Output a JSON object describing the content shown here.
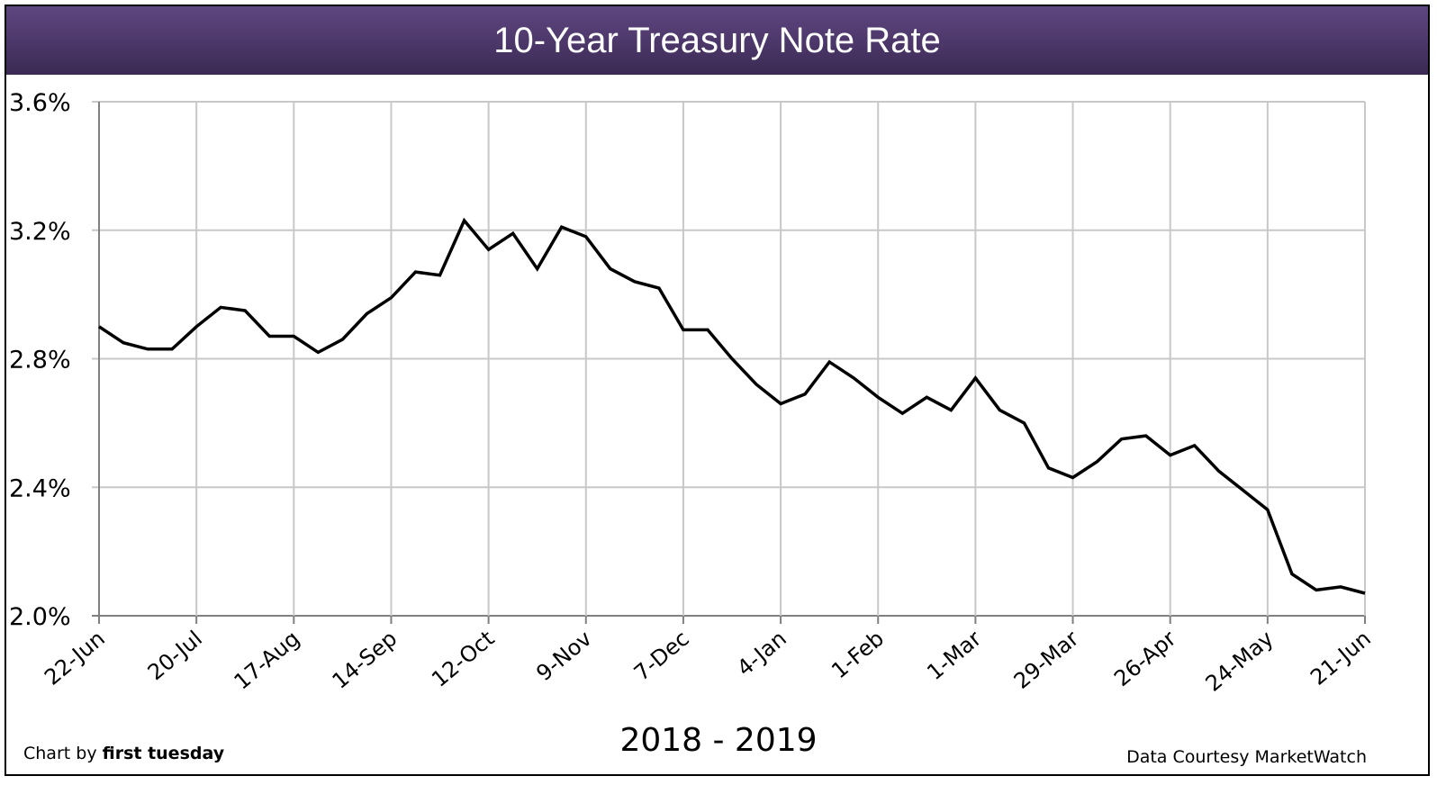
{
  "header": {
    "title": "10-Year Treasury Note Rate"
  },
  "footer": {
    "period": "2018 - 2019",
    "credit_prefix": "Chart by ",
    "credit_brand": "first tuesday",
    "source": "Data Courtesy MarketWatch"
  },
  "colors": {
    "title_bar": "#4c3769",
    "line": "#000000",
    "grid": "#c8c8c8",
    "axis": "#808080"
  },
  "chart_data": {
    "type": "line",
    "title": "10-Year Treasury Note Rate",
    "xlabel": "2018 - 2019",
    "ylabel": "",
    "ylim": [
      2.0,
      3.6
    ],
    "yticks": [
      "3.6%",
      "3.2%",
      "2.8%",
      "2.4%",
      "2.0%"
    ],
    "ytick_values": [
      3.6,
      3.2,
      2.8,
      2.4,
      2.0
    ],
    "xticks": [
      "22-Jun",
      "20-Jul",
      "17-Aug",
      "14-Sep",
      "12-Oct",
      "9-Nov",
      "7-Dec",
      "4-Jan",
      "1-Feb",
      "1-Mar",
      "29-Mar",
      "26-Apr",
      "24-May",
      "21-Jun"
    ],
    "grid": true,
    "legend": "none",
    "series": [
      {
        "name": "10-Year Treasury Note Rate (%)",
        "frequency": "weekly",
        "values": [
          2.9,
          2.85,
          2.83,
          2.83,
          2.9,
          2.96,
          2.95,
          2.87,
          2.87,
          2.82,
          2.86,
          2.94,
          2.99,
          3.07,
          3.06,
          3.23,
          3.14,
          3.19,
          3.08,
          3.21,
          3.18,
          3.08,
          3.04,
          3.02,
          2.89,
          2.89,
          2.8,
          2.72,
          2.66,
          2.69,
          2.79,
          2.74,
          2.68,
          2.63,
          2.68,
          2.64,
          2.74,
          2.64,
          2.6,
          2.46,
          2.43,
          2.48,
          2.55,
          2.56,
          2.5,
          2.53,
          2.45,
          2.39,
          2.33,
          2.13,
          2.08,
          2.09,
          2.07
        ]
      }
    ]
  }
}
